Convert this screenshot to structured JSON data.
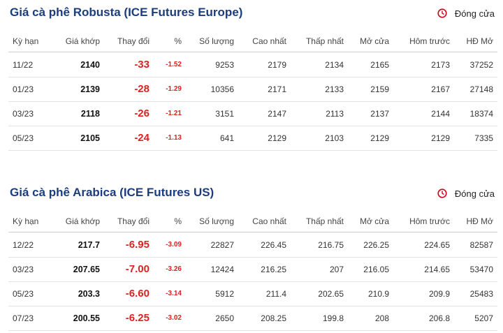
{
  "sections": [
    {
      "title": "Giá cà phê Robusta (ICE Futures Europe)",
      "status": "Đóng cửa",
      "headers": [
        "Kỳ hạn",
        "Giá khớp",
        "Thay đổi",
        "%",
        "Số lượng",
        "Cao nhất",
        "Thấp nhất",
        "Mở cửa",
        "Hôm trước",
        "HĐ Mở"
      ],
      "rows": [
        [
          "11/22",
          "2140",
          "-33",
          "-1.52",
          "9253",
          "2179",
          "2134",
          "2165",
          "2173",
          "37252"
        ],
        [
          "01/23",
          "2139",
          "-28",
          "-1.29",
          "10356",
          "2171",
          "2133",
          "2159",
          "2167",
          "27148"
        ],
        [
          "03/23",
          "2118",
          "-26",
          "-1.21",
          "3151",
          "2147",
          "2113",
          "2137",
          "2144",
          "18374"
        ],
        [
          "05/23",
          "2105",
          "-24",
          "-1.13",
          "641",
          "2129",
          "2103",
          "2129",
          "2129",
          "7335"
        ]
      ]
    },
    {
      "title": "Giá cà phê Arabica (ICE Futures US)",
      "status": "Đóng cửa",
      "headers": [
        "Kỳ hạn",
        "Giá khớp",
        "Thay đổi",
        "%",
        "Số lượng",
        "Cao nhất",
        "Thấp nhất",
        "Mở cửa",
        "Hôm trước",
        "HĐ Mở"
      ],
      "rows": [
        [
          "12/22",
          "217.7",
          "-6.95",
          "-3.09",
          "22827",
          "226.45",
          "216.75",
          "226.25",
          "224.65",
          "82587"
        ],
        [
          "03/23",
          "207.65",
          "-7.00",
          "-3.26",
          "12424",
          "216.25",
          "207",
          "216.05",
          "214.65",
          "53470"
        ],
        [
          "05/23",
          "203.3",
          "-6.60",
          "-3.14",
          "5912",
          "211.4",
          "202.65",
          "210.9",
          "209.9",
          "25483"
        ],
        [
          "07/23",
          "200.55",
          "-6.25",
          "-3.02",
          "2650",
          "208.25",
          "199.8",
          "208",
          "206.8",
          "5207"
        ]
      ]
    }
  ]
}
